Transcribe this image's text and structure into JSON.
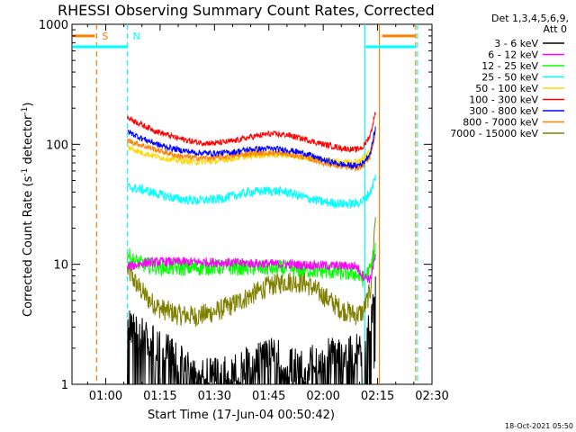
{
  "chart_data": {
    "type": "line",
    "title": "RHESSI Observing Summary Count Rates, Corrected",
    "xlabel": "Start Time (17-Jun-04 00:50:42)",
    "ylabel": "Corrected Count Rate (s-1 detector-1)",
    "ylabel_parts": {
      "main": "Corrected Count Rate (s",
      "sup1": "-1",
      "mid": " detector",
      "sup2": "-1",
      "end": ")"
    },
    "yscale": "log",
    "xlim": [
      50.7,
      150
    ],
    "ylim": [
      1,
      1000
    ],
    "x_ticks": [
      {
        "value": 60,
        "label": "01:00"
      },
      {
        "value": 75,
        "label": "01:15"
      },
      {
        "value": 90,
        "label": "01:30"
      },
      {
        "value": 105,
        "label": "01:45"
      },
      {
        "value": 120,
        "label": "02:00"
      },
      {
        "value": 135,
        "label": "02:15"
      },
      {
        "value": 150,
        "label": "02:30"
      }
    ],
    "y_ticks": [
      {
        "value": 1,
        "label": "1"
      },
      {
        "value": 10,
        "label": "10"
      },
      {
        "value": 100,
        "label": "100"
      },
      {
        "value": 1000,
        "label": "1000"
      }
    ],
    "legend_header": [
      "Det 1,3,4,5,6,9,",
      "Att 0"
    ],
    "series": [
      {
        "name": "3 - 6 keV",
        "color": "#000000",
        "x": [
          66,
          70,
          73,
          76,
          80,
          85,
          90,
          95,
          100,
          105,
          110,
          115,
          120,
          125,
          129,
          131,
          133,
          134.5
        ],
        "y": [
          3,
          2.6,
          2.3,
          2,
          1.6,
          1.2,
          1.2,
          1.3,
          1.6,
          1.9,
          1.5,
          1.4,
          1.8,
          1.8,
          1.9,
          2,
          3,
          7
        ]
      },
      {
        "name": "6 - 12 keV",
        "color": "#ff00ff",
        "x": [
          66,
          68,
          70,
          75,
          80,
          90,
          100,
          110,
          120,
          125,
          129,
          131,
          133,
          134.5
        ],
        "y": [
          9.5,
          9.8,
          10.2,
          10.5,
          10.5,
          10.4,
          10.2,
          10,
          9.8,
          9.7,
          9.7,
          8,
          7.5,
          12
        ]
      },
      {
        "name": "12 - 25 keV",
        "color": "#00ff00",
        "x": [
          66,
          67,
          70,
          75,
          80,
          90,
          100,
          110,
          120,
          125,
          129,
          131,
          133,
          134.5
        ],
        "y": [
          12.5,
          11,
          10,
          9.5,
          9.3,
          9.5,
          9.4,
          9.2,
          8.8,
          8.6,
          8.3,
          7.5,
          9,
          14
        ]
      },
      {
        "name": "25 - 50 keV",
        "color": "#00ffff",
        "x": [
          66,
          70,
          75,
          80,
          85,
          90,
          95,
          100,
          105,
          110,
          115,
          120,
          125,
          129,
          131,
          133,
          134.5
        ],
        "y": [
          44,
          42,
          38,
          35,
          34,
          34.5,
          37,
          40,
          41,
          40,
          36,
          33,
          32,
          32,
          34,
          40,
          55
        ]
      },
      {
        "name": "50 - 100 keV",
        "color": "#ffd700",
        "x": [
          66,
          70,
          75,
          80,
          85,
          90,
          95,
          100,
          105,
          110,
          115,
          120,
          125,
          129,
          131,
          133,
          134.5
        ],
        "y": [
          95,
          85,
          78,
          73,
          71,
          72,
          76,
          80,
          82,
          81,
          77,
          74,
          72,
          72,
          76,
          88,
          120
        ]
      },
      {
        "name": "100 - 300 keV",
        "color": "#ff0000",
        "x": [
          66,
          70,
          75,
          80,
          85,
          90,
          95,
          100,
          105,
          110,
          115,
          120,
          125,
          129,
          131,
          133,
          134.5
        ],
        "y": [
          168,
          145,
          125,
          112,
          104,
          102,
          106,
          115,
          122,
          120,
          110,
          100,
          93,
          90,
          95,
          120,
          190
        ]
      },
      {
        "name": "300 - 800 keV",
        "color": "#0000ff",
        "x": [
          66,
          70,
          75,
          80,
          85,
          90,
          95,
          100,
          105,
          110,
          115,
          120,
          125,
          129,
          131,
          133,
          134.5
        ],
        "y": [
          128,
          112,
          98,
          90,
          85,
          84,
          86,
          91,
          92,
          90,
          84,
          74,
          68,
          66,
          70,
          85,
          140
        ]
      },
      {
        "name": "800 - 7000 keV",
        "color": "#ff8000",
        "x": [
          66,
          70,
          75,
          80,
          85,
          90,
          95,
          100,
          105,
          110,
          115,
          120,
          125,
          129,
          131,
          133,
          134.5
        ],
        "y": [
          108,
          98,
          88,
          80,
          77,
          77,
          80,
          84,
          85,
          83,
          78,
          70,
          65,
          63,
          66,
          80,
          130
        ]
      },
      {
        "name": "7000 - 15000 keV",
        "color": "#808000",
        "x": [
          66,
          67,
          69,
          72,
          75,
          80,
          85,
          90,
          95,
          100,
          105,
          110,
          115,
          120,
          125,
          129,
          131,
          133,
          134.5
        ],
        "y": [
          9,
          8,
          6.5,
          5,
          4.3,
          3.8,
          3.7,
          4,
          4.6,
          5.5,
          6.6,
          7.2,
          7,
          5.5,
          4.2,
          3.8,
          4,
          6,
          28
        ]
      }
    ],
    "annotations": [
      {
        "label": "S",
        "x": 57.5,
        "color": "#ff8000",
        "dashed": true
      },
      {
        "label": "N",
        "x": 66,
        "color": "#00ffff",
        "dashed": true
      },
      {
        "label": "",
        "x": 131.5,
        "color": "#00ffff",
        "dashed": false
      },
      {
        "label": "",
        "x": 135.5,
        "color": "#ff8000",
        "dashed": false
      },
      {
        "label": "",
        "x": 145.5,
        "color": "#ff8000",
        "dashed": true
      },
      {
        "label": "",
        "x": 146,
        "color": "#00ffff",
        "dashed": true
      }
    ],
    "state_bars": [
      {
        "name": "saa-bar-left",
        "color": "#ff8000",
        "level": 800,
        "x": [
          50.7,
          57
        ]
      },
      {
        "name": "night-bar-left",
        "color": "#00ffff",
        "level": 650,
        "x": [
          50.7,
          66
        ]
      },
      {
        "name": "saa-bar-right",
        "color": "#ff8000",
        "level": 800,
        "x": [
          136,
          145.5
        ]
      },
      {
        "name": "night-bar-right",
        "color": "#00ffff",
        "level": 650,
        "x": [
          131.5,
          145.5
        ]
      }
    ]
  },
  "timestamp": "18-Oct-2021 05:50"
}
